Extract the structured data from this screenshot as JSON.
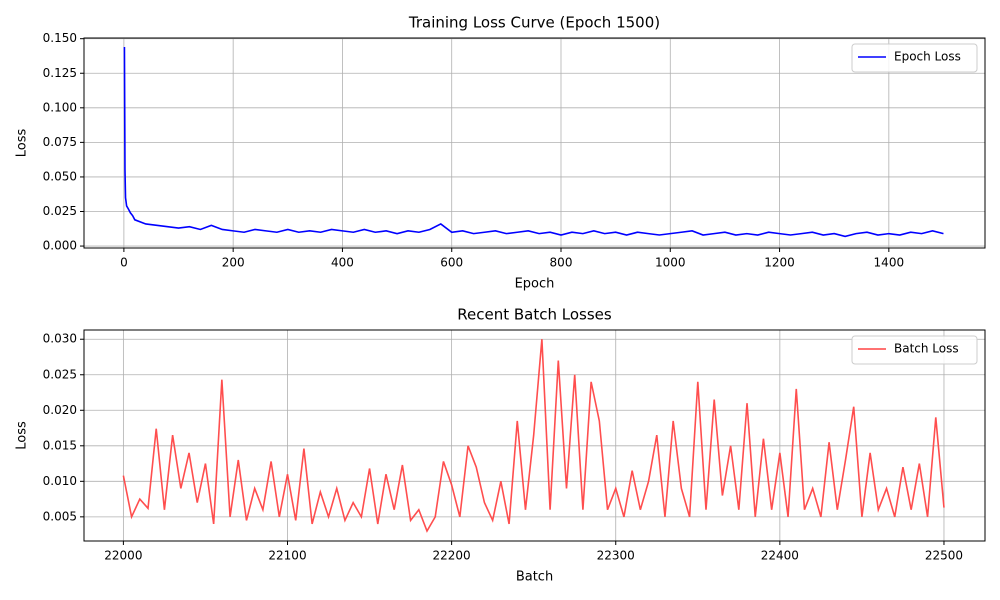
{
  "chart_data": [
    {
      "type": "line",
      "title": "Training Loss Curve (Epoch 1500)",
      "xlabel": "Epoch",
      "ylabel": "Loss",
      "x": [
        1,
        2,
        3,
        5,
        8,
        12,
        16,
        20,
        40,
        60,
        80,
        100,
        120,
        140,
        160,
        180,
        200,
        220,
        240,
        260,
        280,
        300,
        320,
        340,
        360,
        380,
        400,
        420,
        440,
        460,
        480,
        500,
        520,
        540,
        560,
        580,
        600,
        620,
        640,
        660,
        680,
        700,
        720,
        740,
        760,
        780,
        800,
        820,
        840,
        860,
        880,
        900,
        920,
        940,
        960,
        980,
        1000,
        1020,
        1040,
        1060,
        1080,
        1100,
        1120,
        1140,
        1160,
        1180,
        1200,
        1220,
        1240,
        1260,
        1280,
        1300,
        1320,
        1340,
        1360,
        1380,
        1400,
        1420,
        1440,
        1460,
        1480,
        1500
      ],
      "series": [
        {
          "name": "Epoch Loss",
          "color": "#0000ff",
          "values": [
            0.144,
            0.055,
            0.035,
            0.029,
            0.027,
            0.024,
            0.022,
            0.019,
            0.016,
            0.015,
            0.014,
            0.013,
            0.014,
            0.012,
            0.015,
            0.012,
            0.011,
            0.01,
            0.012,
            0.011,
            0.01,
            0.012,
            0.01,
            0.011,
            0.01,
            0.012,
            0.011,
            0.01,
            0.012,
            0.01,
            0.011,
            0.009,
            0.011,
            0.01,
            0.012,
            0.016,
            0.01,
            0.011,
            0.009,
            0.01,
            0.011,
            0.009,
            0.01,
            0.011,
            0.009,
            0.01,
            0.008,
            0.01,
            0.009,
            0.011,
            0.009,
            0.01,
            0.008,
            0.01,
            0.009,
            0.008,
            0.009,
            0.01,
            0.011,
            0.008,
            0.009,
            0.01,
            0.008,
            0.009,
            0.008,
            0.01,
            0.009,
            0.008,
            0.009,
            0.01,
            0.008,
            0.009,
            0.007,
            0.009,
            0.01,
            0.008,
            0.009,
            0.008,
            0.01,
            0.009,
            0.011,
            0.009
          ]
        }
      ],
      "xlim": [
        -73,
        1576
      ],
      "xticks": [
        0,
        200,
        400,
        600,
        800,
        1000,
        1200,
        1400
      ],
      "ylim": [
        -0.0014,
        0.1505
      ],
      "yticks": [
        {
          "value": 0,
          "label": "0.000"
        },
        {
          "value": 0.025,
          "label": "0.025"
        },
        {
          "value": 0.05,
          "label": "0.050"
        },
        {
          "value": 0.075,
          "label": "0.075"
        },
        {
          "value": 0.1,
          "label": "0.100"
        },
        {
          "value": 0.125,
          "label": "0.125"
        },
        {
          "value": 0.15,
          "label": "0.150"
        }
      ],
      "grid": true,
      "legend": "upper right"
    },
    {
      "type": "line",
      "title": "Recent Batch Losses",
      "xlabel": "Batch",
      "ylabel": "Loss",
      "x": [
        22000,
        22005,
        22010,
        22015,
        22020,
        22025,
        22030,
        22035,
        22040,
        22045,
        22050,
        22055,
        22060,
        22065,
        22070,
        22075,
        22080,
        22085,
        22090,
        22095,
        22100,
        22105,
        22110,
        22115,
        22120,
        22125,
        22130,
        22135,
        22140,
        22145,
        22150,
        22155,
        22160,
        22165,
        22170,
        22175,
        22180,
        22185,
        22190,
        22195,
        22200,
        22205,
        22210,
        22215,
        22220,
        22225,
        22230,
        22235,
        22240,
        22245,
        22250,
        22255,
        22260,
        22265,
        22270,
        22275,
        22280,
        22285,
        22290,
        22295,
        22300,
        22305,
        22310,
        22315,
        22320,
        22325,
        22330,
        22335,
        22340,
        22345,
        22350,
        22355,
        22360,
        22365,
        22370,
        22375,
        22380,
        22385,
        22390,
        22395,
        22400,
        22405,
        22410,
        22415,
        22420,
        22425,
        22430,
        22435,
        22440,
        22445,
        22450,
        22455,
        22460,
        22465,
        22470,
        22475,
        22480,
        22485,
        22490,
        22495,
        22500
      ],
      "series": [
        {
          "name": "Batch Loss",
          "color": "#ff4444",
          "values": [
            0.0108,
            0.005,
            0.0075,
            0.0062,
            0.0174,
            0.006,
            0.0165,
            0.009,
            0.014,
            0.007,
            0.0125,
            0.004,
            0.0243,
            0.005,
            0.013,
            0.0045,
            0.009,
            0.006,
            0.0128,
            0.005,
            0.011,
            0.0045,
            0.0146,
            0.004,
            0.0085,
            0.005,
            0.009,
            0.0045,
            0.007,
            0.005,
            0.0118,
            0.004,
            0.011,
            0.006,
            0.0123,
            0.0045,
            0.006,
            0.003,
            0.005,
            0.0128,
            0.0095,
            0.005,
            0.015,
            0.012,
            0.007,
            0.0045,
            0.01,
            0.004,
            0.0185,
            0.006,
            0.0165,
            0.03,
            0.006,
            0.027,
            0.009,
            0.025,
            0.006,
            0.024,
            0.0185,
            0.006,
            0.009,
            0.005,
            0.0115,
            0.006,
            0.01,
            0.0165,
            0.005,
            0.0185,
            0.009,
            0.005,
            0.024,
            0.006,
            0.0215,
            0.008,
            0.015,
            0.006,
            0.021,
            0.005,
            0.016,
            0.006,
            0.014,
            0.005,
            0.023,
            0.006,
            0.009,
            0.005,
            0.0155,
            0.006,
            0.013,
            0.0205,
            0.005,
            0.014,
            0.006,
            0.009,
            0.005,
            0.012,
            0.006,
            0.0125,
            0.005,
            0.019,
            0.0063
          ]
        }
      ],
      "xlim": [
        21976,
        22525
      ],
      "xticks": [
        22000,
        22100,
        22200,
        22300,
        22400,
        22500
      ],
      "ylim": [
        0.0016,
        0.0313
      ],
      "yticks": [
        {
          "value": 0.005,
          "label": "0.005"
        },
        {
          "value": 0.01,
          "label": "0.010"
        },
        {
          "value": 0.015,
          "label": "0.015"
        },
        {
          "value": 0.02,
          "label": "0.020"
        },
        {
          "value": 0.025,
          "label": "0.025"
        },
        {
          "value": 0.03,
          "label": "0.030"
        }
      ],
      "grid": true,
      "legend": "upper right"
    }
  ]
}
